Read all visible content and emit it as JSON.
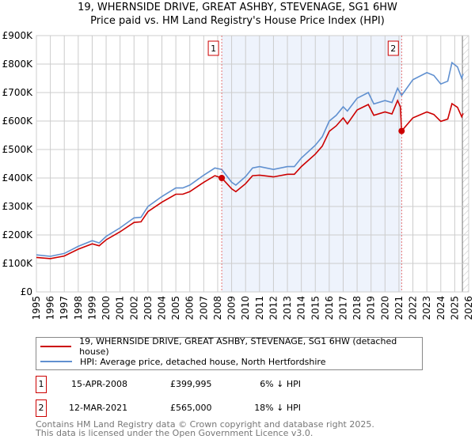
{
  "title": "19, WHERNSIDE DRIVE, GREAT ASHBY, STEVENAGE, SG1 6HW",
  "subtitle": "Price paid vs. HM Land Registry's House Price Index (HPI)",
  "colors": {
    "property": "#cc0000",
    "hpi": "#6090d0",
    "shade": "#eef3fc"
  },
  "chart_data": {
    "type": "line",
    "ylabel": "",
    "xlabel": "",
    "xlim": [
      1995,
      2026
    ],
    "ylim": [
      0,
      900000
    ],
    "yticks": [
      "£0",
      "£100K",
      "£200K",
      "£300K",
      "£400K",
      "£500K",
      "£600K",
      "£700K",
      "£800K",
      "£900K"
    ],
    "xticks": [
      "1995",
      "1996",
      "1997",
      "1998",
      "1999",
      "2000",
      "2001",
      "2002",
      "2003",
      "2004",
      "2005",
      "2006",
      "2007",
      "2008",
      "2009",
      "2010",
      "2011",
      "2012",
      "2013",
      "2014",
      "2015",
      "2016",
      "2017",
      "2018",
      "2019",
      "2020",
      "2021",
      "2022",
      "2023",
      "2024",
      "2025",
      "2026"
    ],
    "grid": true,
    "legend_position": "below",
    "series": [
      {
        "name": "19, WHERNSIDE DRIVE, GREAT ASHBY, STEVENAGE, SG1 6HW (detached house)",
        "x": [
          1995,
          1996,
          1997,
          1998,
          1999,
          1999.5,
          2000,
          2001,
          2002,
          2002.5,
          2003,
          2004,
          2005,
          2005.5,
          2006,
          2007,
          2007.8,
          2008.29,
          2009,
          2009.3,
          2010,
          2010.5,
          2011,
          2012,
          2013,
          2013.5,
          2014,
          2015,
          2015.5,
          2016,
          2016.5,
          2017,
          2017.3,
          2018,
          2018.8,
          2019.2,
          2020,
          2020.5,
          2020.9,
          2021.1,
          2021.19,
          2022,
          2023,
          2023.5,
          2024,
          2024.5,
          2024.8,
          2025.2,
          2025.5,
          2025.6
        ],
        "y": [
          121000,
          117000,
          126000,
          150000,
          169000,
          162000,
          183000,
          211000,
          244000,
          246000,
          282000,
          315000,
          343000,
          343000,
          352000,
          385000,
          408000,
          399995,
          362000,
          352000,
          380000,
          408000,
          410000,
          404000,
          413000,
          413000,
          440000,
          484000,
          512000,
          564000,
          583000,
          611000,
          590000,
          639000,
          658000,
          620000,
          632000,
          625000,
          672000,
          650000,
          565000,
          611000,
          632000,
          623000,
          599000,
          607000,
          661000,
          648000,
          615000,
          627000
        ]
      },
      {
        "name": "HPI: Average price, detached house, North Hertfordshire",
        "x": [
          1995,
          1996,
          1997,
          1998,
          1999,
          1999.5,
          2000,
          2001,
          2002,
          2002.5,
          2003,
          2004,
          2005,
          2005.5,
          2006,
          2007,
          2007.8,
          2008.29,
          2009,
          2009.3,
          2010,
          2010.5,
          2011,
          2012,
          2013,
          2013.5,
          2014,
          2015,
          2015.5,
          2016,
          2016.5,
          2017,
          2017.3,
          2018,
          2018.8,
          2019.2,
          2020,
          2020.5,
          2020.9,
          2021.19,
          2022,
          2023,
          2023.5,
          2024,
          2024.5,
          2024.8,
          2025.2,
          2025.5,
          2025.6
        ],
        "y": [
          130000,
          125000,
          135000,
          160000,
          180000,
          172000,
          195000,
          225000,
          260000,
          262000,
          300000,
          335000,
          365000,
          365000,
          375000,
          410000,
          435000,
          430000,
          385000,
          375000,
          405000,
          435000,
          440000,
          430000,
          440000,
          440000,
          470000,
          515000,
          545000,
          600000,
          620000,
          650000,
          635000,
          680000,
          700000,
          660000,
          672000,
          665000,
          715000,
          690000,
          745000,
          770000,
          760000,
          730000,
          740000,
          805000,
          790000,
          750000,
          765000
        ]
      }
    ],
    "annotations": [
      {
        "label": "1",
        "x": 2008.29,
        "y": 399995
      },
      {
        "label": "2",
        "x": 2021.19,
        "y": 565000
      }
    ]
  },
  "legend": [
    "19, WHERNSIDE DRIVE, GREAT ASHBY, STEVENAGE, SG1 6HW (detached house)",
    "HPI: Average price, detached house, North Hertfordshire"
  ],
  "events": [
    {
      "num": "1",
      "date": "15-APR-2008",
      "price": "£399,995",
      "diff": "6% ↓ HPI"
    },
    {
      "num": "2",
      "date": "12-MAR-2021",
      "price": "£565,000",
      "diff": "18% ↓ HPI"
    }
  ],
  "footer": [
    "Contains HM Land Registry data © Crown copyright and database right 2025.",
    "This data is licensed under the Open Government Licence v3.0."
  ]
}
